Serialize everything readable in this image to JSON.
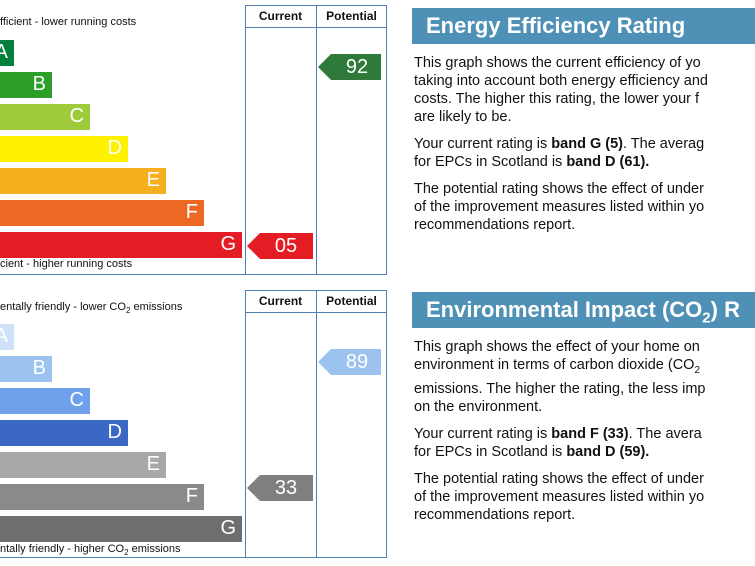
{
  "energy": {
    "header_current": "Current",
    "header_potential": "Potential",
    "top_caption": "fficient - lower running costs",
    "bottom_caption": "cient - higher running costs",
    "bands": [
      {
        "letter": "A",
        "color": "#007f3d"
      },
      {
        "letter": "B",
        "color": "#2c9f29"
      },
      {
        "letter": "C",
        "color": "#9dcb3c"
      },
      {
        "letter": "D",
        "color": "#fff200"
      },
      {
        "letter": "E",
        "color": "#f7af1d"
      },
      {
        "letter": "F",
        "color": "#ed6823"
      },
      {
        "letter": "G",
        "color": "#e31d23"
      }
    ],
    "current": {
      "value": "05",
      "color": "#e31d23"
    },
    "potential": {
      "value": "92",
      "color": "#2f7a3b"
    }
  },
  "environment": {
    "header_current": "Current",
    "header_potential": "Potential",
    "top_caption_pre": "entally friendly - lower CO",
    "top_caption_sub": "2",
    "top_caption_post": " emissions",
    "bottom_caption_pre": "ntally friendly - higher CO",
    "bottom_caption_sub": "2",
    "bottom_caption_post": " emissions",
    "bands": [
      {
        "letter": "A",
        "color": "#cfe2f8"
      },
      {
        "letter": "B",
        "color": "#9cc3f0"
      },
      {
        "letter": "C",
        "color": "#6ea0ec"
      },
      {
        "letter": "D",
        "color": "#3b68c5"
      },
      {
        "letter": "E",
        "color": "#a8a8a8"
      },
      {
        "letter": "F",
        "color": "#8a8a8a"
      },
      {
        "letter": "G",
        "color": "#6e6e6e"
      }
    ],
    "current": {
      "value": "33",
      "color": "#7f7f7f"
    },
    "potential": {
      "value": "89",
      "color": "#9cc3f0"
    }
  },
  "panels": {
    "energy_title": "Energy Efficiency Rating",
    "energy_p1": "This graph shows the current efficiency of yo",
    "energy_p1_l2": "taking into account both energy efficiency and",
    "energy_p1_l3": "costs. The higher this rating, the lower your f",
    "energy_p1_l4": "are likely to be.",
    "energy_p2_l1_a": "Your current rating is ",
    "energy_p2_l1_b": "band G (5)",
    "energy_p2_l1_c": ". The averag",
    "energy_p2_l2_a": "for EPCs in Scotland is ",
    "energy_p2_l2_b": "band D (61).",
    "energy_p3_l1": "The potential rating shows the effect of under",
    "energy_p3_l2": "of the improvement measures listed within yo",
    "energy_p3_l3": "recommendations report.",
    "env_title_a": "Environmental Impact (CO",
    "env_title_sub": "2",
    "env_title_b": ") R",
    "env_p1_l1": "This graph shows the effect of your home on",
    "env_p1_l2_a": "environment in terms of carbon dioxide (CO",
    "env_p1_l2_sub": "2",
    "env_p1_l3": "emissions. The higher the rating, the less imp",
    "env_p1_l4": "on the environment.",
    "env_p2_l1_a": "Your current rating is ",
    "env_p2_l1_b": "band F (33)",
    "env_p2_l1_c": ". The avera",
    "env_p2_l2_a": "for EPCs in Scotland is ",
    "env_p2_l2_b": "band D (59).",
    "env_p3_l1": "The potential rating shows the effect of under",
    "env_p3_l2": "of the improvement measures listed within yo",
    "env_p3_l3": "recommendations report."
  }
}
